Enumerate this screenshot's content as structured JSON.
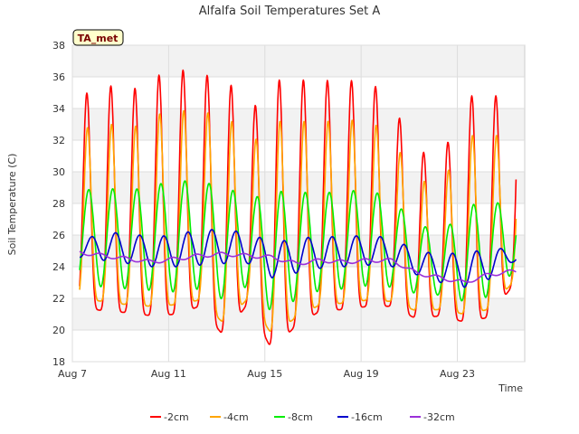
{
  "chart_data": {
    "type": "line",
    "title": "Alfalfa Soil Temperatures Set A",
    "xlabel": "Time",
    "ylabel": "Soil Temperature (C)",
    "badge": "TA_met",
    "x_range_days": [
      7.0,
      25.8
    ],
    "ylim": [
      18,
      38
    ],
    "yticks": [
      18,
      20,
      22,
      24,
      26,
      28,
      30,
      32,
      34,
      36,
      38
    ],
    "xticks": [
      {
        "day": 7,
        "label": "Aug 7"
      },
      {
        "day": 11,
        "label": "Aug 11"
      },
      {
        "day": 15,
        "label": "Aug 15"
      },
      {
        "day": 19,
        "label": "Aug 19"
      },
      {
        "day": 23,
        "label": "Aug 23"
      }
    ],
    "grid": true,
    "legend_position": "bottom",
    "days": [
      7.3,
      8.3,
      9.3,
      10.3,
      11.3,
      12.3,
      13.3,
      14.3,
      15.3,
      16.3,
      17.3,
      18.3,
      19.3,
      20.3,
      21.3,
      22.3,
      23.3,
      24.3,
      25.3
    ],
    "series": [
      {
        "name": "-2cm",
        "color": "#ff0000",
        "max": [
          34.7,
          35.6,
          35.0,
          35.9,
          36.6,
          36.0,
          36.3,
          33.5,
          35.8,
          35.8,
          35.8,
          35.7,
          35.9,
          34.2,
          31.5,
          30.6,
          34.8,
          34.8,
          34.8
        ],
        "min": [
          21.5,
          21.2,
          21.1,
          20.9,
          21.0,
          21.5,
          19.6,
          21.7,
          18.7,
          20.3,
          21.2,
          21.3,
          21.5,
          21.5,
          20.7,
          20.9,
          20.5,
          20.8,
          22.8
        ]
      },
      {
        "name": "-4cm",
        "color": "#ffa500",
        "max": [
          32.6,
          33.2,
          32.6,
          33.5,
          34.0,
          33.6,
          34.0,
          31.5,
          33.2,
          33.2,
          33.2,
          33.2,
          33.4,
          32.0,
          29.6,
          29.0,
          32.3,
          32.3,
          32.3
        ],
        "min": [
          22.0,
          21.8,
          21.6,
          21.5,
          21.6,
          21.9,
          20.4,
          22.0,
          19.7,
          20.8,
          21.6,
          21.7,
          21.9,
          21.8,
          21.2,
          21.3,
          21.0,
          21.3,
          23.0
        ]
      },
      {
        "name": "-8cm",
        "color": "#00ee00",
        "max": [
          28.8,
          29.0,
          28.8,
          29.1,
          29.5,
          29.3,
          29.2,
          28.2,
          28.8,
          28.7,
          28.7,
          28.7,
          29.0,
          28.1,
          26.9,
          25.9,
          27.9,
          28.0,
          28.1
        ],
        "min": [
          23.0,
          22.7,
          22.6,
          22.5,
          22.4,
          22.6,
          21.9,
          22.8,
          21.1,
          21.9,
          22.5,
          22.6,
          22.8,
          22.7,
          22.3,
          22.2,
          21.8,
          22.1,
          23.6
        ]
      },
      {
        "name": "-16cm",
        "color": "#0000cc",
        "max": [
          25.6,
          26.2,
          26.1,
          25.9,
          26.0,
          26.4,
          26.3,
          26.2,
          25.5,
          25.8,
          25.9,
          25.9,
          26.0,
          25.8,
          25.0,
          24.8,
          24.9,
          25.1,
          25.2
        ],
        "min": [
          24.6,
          24.4,
          24.2,
          24.0,
          24.0,
          24.1,
          24.2,
          24.2,
          23.3,
          23.6,
          23.9,
          24.0,
          24.1,
          24.0,
          23.5,
          23.0,
          22.7,
          23.2,
          24.3
        ]
      },
      {
        "name": "-32cm",
        "color": "#9b30d9",
        "mean": [
          24.9,
          24.7,
          24.5,
          24.3,
          24.5,
          24.7,
          24.8,
          24.7,
          24.6,
          24.2,
          24.4,
          24.3,
          24.4,
          24.4,
          23.6,
          23.3,
          23.0,
          23.5,
          23.7
        ]
      }
    ]
  }
}
